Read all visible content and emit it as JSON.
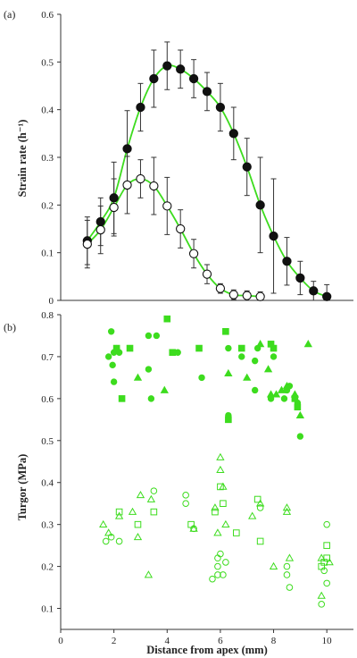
{
  "chart_data": [
    {
      "type": "line",
      "panel_label": "(a)",
      "ylabel": "Strain rate (h⁻¹)",
      "xlim": [
        0,
        11
      ],
      "ylim": [
        0,
        0.6
      ],
      "x_ticks": [],
      "y_ticks": [
        "0",
        "0.1",
        "0.2",
        "0.3",
        "0.4",
        "0.5",
        "0.6"
      ],
      "grid": false,
      "fit_color": "#3ddc1e",
      "series": [
        {
          "marker": "filled-circle",
          "x": [
            1.0,
            1.5,
            2.0,
            2.5,
            3.0,
            3.5,
            4.0,
            4.5,
            5.0,
            5.5,
            6.0,
            6.5,
            7.0,
            7.5,
            8.0,
            8.5,
            9.0,
            9.5,
            10.0
          ],
          "y": [
            0.125,
            0.165,
            0.215,
            0.318,
            0.405,
            0.465,
            0.492,
            0.485,
            0.465,
            0.438,
            0.405,
            0.35,
            0.28,
            0.2,
            0.135,
            0.082,
            0.047,
            0.02,
            0.008
          ],
          "err": [
            0.05,
            0.05,
            0.075,
            0.08,
            0.05,
            0.06,
            0.05,
            0.04,
            0.04,
            0.04,
            0.05,
            0.055,
            0.06,
            0.1,
            0.12,
            0.05,
            0.035,
            0.02,
            0.025
          ]
        },
        {
          "marker": "open-circle",
          "x": [
            1.0,
            1.5,
            2.0,
            2.5,
            3.0,
            3.5,
            4.0,
            4.5,
            5.0,
            5.5,
            6.0,
            6.5,
            7.0,
            7.5
          ],
          "y": [
            0.118,
            0.148,
            0.195,
            0.242,
            0.255,
            0.24,
            0.198,
            0.15,
            0.098,
            0.055,
            0.025,
            0.012,
            0.01,
            0.008
          ],
          "err": [
            0.05,
            0.05,
            0.06,
            0.06,
            0.04,
            0.06,
            0.06,
            0.04,
            0.03,
            0.02,
            0.01,
            0.01,
            0.01,
            0.01
          ]
        }
      ]
    },
    {
      "type": "scatter",
      "panel_label": "(b)",
      "xlabel": "Distance from apex (mm)",
      "ylabel": "Turgor (MPa)",
      "xlim": [
        0,
        11
      ],
      "ylim": [
        0.05,
        0.8
      ],
      "x_ticks": [
        "0",
        "2",
        "4",
        "6",
        "8",
        "10"
      ],
      "y_ticks": [
        "0.1",
        "0.2",
        "0.3",
        "0.4",
        "0.5",
        "0.6",
        "0.7",
        "0.8"
      ],
      "grid": false,
      "point_color": "#3ddc1e",
      "series": [
        {
          "marker": "filled-circle",
          "points": [
            [
              1.8,
              0.7
            ],
            [
              1.9,
              0.76
            ],
            [
              2.0,
              0.71
            ],
            [
              2.1,
              0.72
            ],
            [
              1.95,
              0.68
            ],
            [
              2.2,
              0.71
            ],
            [
              2.0,
              0.64
            ],
            [
              3.3,
              0.75
            ],
            [
              3.6,
              0.75
            ],
            [
              3.4,
              0.6
            ],
            [
              3.3,
              0.67
            ],
            [
              4.4,
              0.71
            ],
            [
              5.3,
              0.65
            ],
            [
              6.3,
              0.72
            ],
            [
              6.3,
              0.56
            ],
            [
              6.8,
              0.7
            ],
            [
              7.3,
              0.69
            ],
            [
              7.4,
              0.72
            ],
            [
              7.3,
              0.62
            ],
            [
              8.5,
              0.62
            ],
            [
              8.4,
              0.6
            ],
            [
              8.6,
              0.63
            ],
            [
              8.9,
              0.59
            ],
            [
              9.0,
              0.51
            ],
            [
              8.0,
              0.7
            ],
            [
              7.9,
              0.6
            ]
          ]
        },
        {
          "marker": "filled-square",
          "points": [
            [
              2.1,
              0.72
            ],
            [
              2.3,
              0.6
            ],
            [
              2.6,
              0.72
            ],
            [
              4.0,
              0.79
            ],
            [
              4.2,
              0.71
            ],
            [
              5.2,
              0.72
            ],
            [
              6.2,
              0.76
            ],
            [
              6.3,
              0.55
            ],
            [
              6.8,
              0.72
            ],
            [
              7.9,
              0.73
            ],
            [
              8.0,
              0.72
            ],
            [
              8.8,
              0.6
            ],
            [
              8.9,
              0.58
            ]
          ]
        },
        {
          "marker": "filled-triangle",
          "points": [
            [
              2.9,
              0.65
            ],
            [
              3.9,
              0.62
            ],
            [
              6.3,
              0.66
            ],
            [
              7.5,
              0.73
            ],
            [
              7.9,
              0.61
            ],
            [
              8.1,
              0.61
            ],
            [
              8.3,
              0.62
            ],
            [
              8.5,
              0.63
            ],
            [
              8.8,
              0.61
            ],
            [
              9.0,
              0.56
            ],
            [
              9.3,
              0.73
            ],
            [
              7.0,
              0.65
            ],
            [
              7.8,
              0.67
            ]
          ]
        },
        {
          "marker": "open-circle",
          "points": [
            [
              1.7,
              0.26
            ],
            [
              1.9,
              0.27
            ],
            [
              2.2,
              0.26
            ],
            [
              3.5,
              0.38
            ],
            [
              4.7,
              0.37
            ],
            [
              4.7,
              0.35
            ],
            [
              5.0,
              0.29
            ],
            [
              5.7,
              0.17
            ],
            [
              5.9,
              0.2
            ],
            [
              5.9,
              0.18
            ],
            [
              5.9,
              0.22
            ],
            [
              6.0,
              0.23
            ],
            [
              6.1,
              0.18
            ],
            [
              6.2,
              0.21
            ],
            [
              7.5,
              0.34
            ],
            [
              8.5,
              0.2
            ],
            [
              8.5,
              0.18
            ],
            [
              8.6,
              0.15
            ],
            [
              9.8,
              0.11
            ],
            [
              10.0,
              0.3
            ],
            [
              10.0,
              0.16
            ],
            [
              9.9,
              0.19
            ]
          ]
        },
        {
          "marker": "open-square",
          "points": [
            [
              2.2,
              0.33
            ],
            [
              2.9,
              0.3
            ],
            [
              3.5,
              0.33
            ],
            [
              4.9,
              0.3
            ],
            [
              5.8,
              0.33
            ],
            [
              6.0,
              0.39
            ],
            [
              6.1,
              0.35
            ],
            [
              6.6,
              0.28
            ],
            [
              7.4,
              0.36
            ],
            [
              7.5,
              0.26
            ],
            [
              9.9,
              0.21
            ],
            [
              10.0,
              0.25
            ],
            [
              10.0,
              0.22
            ],
            [
              9.8,
              0.2
            ]
          ]
        },
        {
          "marker": "open-triangle",
          "points": [
            [
              1.6,
              0.3
            ],
            [
              1.8,
              0.28
            ],
            [
              2.2,
              0.32
            ],
            [
              2.7,
              0.33
            ],
            [
              2.9,
              0.27
            ],
            [
              3.0,
              0.37
            ],
            [
              3.3,
              0.18
            ],
            [
              3.4,
              0.36
            ],
            [
              5.0,
              0.29
            ],
            [
              5.8,
              0.34
            ],
            [
              5.9,
              0.28
            ],
            [
              6.0,
              0.46
            ],
            [
              6.0,
              0.43
            ],
            [
              6.1,
              0.39
            ],
            [
              6.2,
              0.3
            ],
            [
              7.2,
              0.32
            ],
            [
              7.5,
              0.35
            ],
            [
              8.0,
              0.2
            ],
            [
              8.5,
              0.34
            ],
            [
              8.5,
              0.33
            ],
            [
              8.6,
              0.22
            ],
            [
              9.8,
              0.22
            ],
            [
              9.8,
              0.13
            ],
            [
              10.1,
              0.21
            ]
          ]
        }
      ]
    }
  ]
}
